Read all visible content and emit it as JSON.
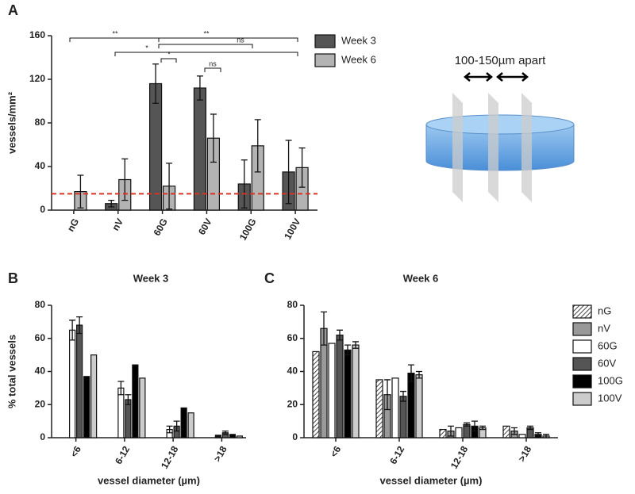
{
  "chart_data": [
    {
      "type": "bar",
      "panel": "A",
      "ylabel": "vessels/mm²",
      "categories": [
        "nG",
        "nV",
        "60G",
        "60V",
        "100G",
        "100V"
      ],
      "series": [
        {
          "name": "Week 3",
          "color": "#555555",
          "values": [
            null,
            6,
            116,
            112,
            24,
            35
          ],
          "errors": [
            null,
            3,
            18,
            11,
            22,
            29
          ]
        },
        {
          "name": "Week 6",
          "color": "#b3b3b3",
          "values": [
            17,
            28,
            22,
            66,
            59,
            39
          ],
          "errors": [
            15,
            19,
            21,
            22,
            24,
            18
          ]
        }
      ],
      "ylim": [
        0,
        160
      ],
      "yticks": [
        0,
        40,
        80,
        120,
        160
      ],
      "reference_line": 15,
      "reference_color": "#e03020",
      "annotations": [
        "**",
        "**",
        "ns",
        "*",
        "*",
        "ns"
      ],
      "legend": true
    },
    {
      "type": "bar",
      "panel": "B",
      "title": "Week 3",
      "ylabel": "% total vessels",
      "xlabel": "vessel diameter (µm)",
      "categories": [
        "<6",
        "6-12",
        "12-18",
        ">18"
      ],
      "series": [
        {
          "color": "#ffffff",
          "pattern": "hatch",
          "values": [
            null,
            null,
            null,
            null
          ],
          "errors": [
            null,
            null,
            null,
            null
          ]
        },
        {
          "color": "#999999",
          "values": [
            null,
            null,
            null,
            null
          ],
          "errors": [
            null,
            null,
            null,
            null
          ]
        },
        {
          "color": "#ffffff",
          "values": [
            65,
            30,
            5,
            1
          ],
          "errors": [
            6,
            4,
            2,
            0.5
          ]
        },
        {
          "color": "#555555",
          "values": [
            68,
            23,
            7,
            3
          ],
          "errors": [
            5,
            3,
            3,
            1
          ]
        },
        {
          "color": "#000000",
          "values": [
            37,
            44,
            18,
            2
          ],
          "errors": [
            null,
            null,
            null,
            null
          ]
        },
        {
          "color": "#cccccc",
          "values": [
            50,
            36,
            15,
            1
          ],
          "errors": [
            null,
            null,
            null,
            null
          ]
        }
      ],
      "ylim": [
        0,
        80
      ],
      "yticks": [
        0,
        20,
        40,
        60,
        80
      ],
      "legend": false
    },
    {
      "type": "bar",
      "panel": "C",
      "title": "Week 6",
      "xlabel": "vessel diameter (µm)",
      "categories": [
        "<6",
        "6-12",
        "12-18",
        ">18"
      ],
      "series": [
        {
          "name": "nG",
          "color": "#ffffff",
          "pattern": "hatch",
          "values": [
            52,
            35,
            5,
            7
          ],
          "errors": [
            null,
            null,
            null,
            null
          ]
        },
        {
          "name": "nV",
          "color": "#999999",
          "values": [
            66,
            26,
            4,
            4
          ],
          "errors": [
            10,
            9,
            3,
            2
          ]
        },
        {
          "name": "60G",
          "color": "#ffffff",
          "values": [
            57,
            36,
            6,
            2
          ],
          "errors": [
            null,
            null,
            null,
            null
          ]
        },
        {
          "name": "60V",
          "color": "#555555",
          "values": [
            62,
            25,
            8,
            6
          ],
          "errors": [
            3,
            3,
            1,
            1
          ]
        },
        {
          "name": "100G",
          "color": "#000000",
          "values": [
            53,
            39,
            7,
            2
          ],
          "errors": [
            3,
            5,
            3,
            1
          ]
        },
        {
          "name": "100V",
          "color": "#cccccc",
          "values": [
            56,
            38,
            6,
            1
          ],
          "errors": [
            2,
            2,
            1,
            1
          ]
        }
      ],
      "ylim": [
        0,
        80
      ],
      "yticks": [
        0,
        20,
        40,
        60,
        80
      ],
      "legend": true
    }
  ],
  "diagram": {
    "label": "100-150µm apart"
  }
}
